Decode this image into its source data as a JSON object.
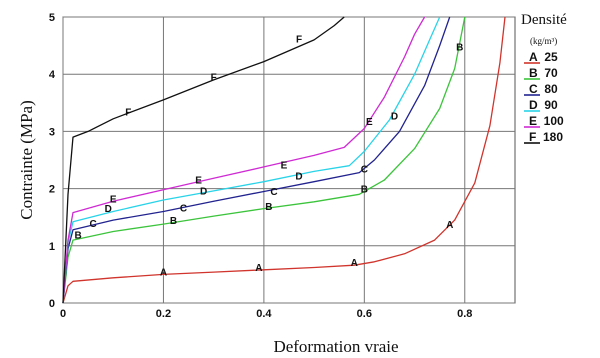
{
  "chart_data": {
    "type": "line",
    "title": "",
    "xlabel": "Deformation vraie",
    "ylabel": "Contrainte (MPa)",
    "xlim": [
      0,
      0.9
    ],
    "ylim": [
      0,
      5
    ],
    "x_ticks": [
      "0",
      "0.2",
      "0.4",
      "0.6",
      "0.8"
    ],
    "y_ticks": [
      "0",
      "1",
      "2",
      "3",
      "4",
      "5"
    ],
    "grid": true,
    "legend": {
      "title": "Densité",
      "unit": "(kg/m³)",
      "placement": "right"
    },
    "series": [
      {
        "name": "A 25",
        "marker": "A",
        "color": "#d0342c",
        "points": [
          [
            0,
            0
          ],
          [
            0.01,
            0.3
          ],
          [
            0.02,
            0.38
          ],
          [
            0.1,
            0.44
          ],
          [
            0.2,
            0.5
          ],
          [
            0.3,
            0.54
          ],
          [
            0.4,
            0.58
          ],
          [
            0.5,
            0.62
          ],
          [
            0.58,
            0.66
          ],
          [
            0.62,
            0.72
          ],
          [
            0.68,
            0.86
          ],
          [
            0.74,
            1.1
          ],
          [
            0.78,
            1.45
          ],
          [
            0.82,
            2.1
          ],
          [
            0.85,
            3.1
          ],
          [
            0.87,
            4.2
          ],
          [
            0.88,
            5.0
          ]
        ],
        "labels": [
          [
            0.2,
            0.55
          ],
          [
            0.39,
            0.63
          ],
          [
            0.58,
            0.72
          ],
          [
            0.77,
            1.38
          ]
        ]
      },
      {
        "name": "B 70",
        "marker": "B",
        "color": "#3cc43c",
        "points": [
          [
            0,
            0
          ],
          [
            0.01,
            0.8
          ],
          [
            0.02,
            1.1
          ],
          [
            0.1,
            1.25
          ],
          [
            0.2,
            1.38
          ],
          [
            0.3,
            1.52
          ],
          [
            0.4,
            1.65
          ],
          [
            0.5,
            1.77
          ],
          [
            0.59,
            1.9
          ],
          [
            0.64,
            2.15
          ],
          [
            0.7,
            2.7
          ],
          [
            0.75,
            3.4
          ],
          [
            0.78,
            4.1
          ],
          [
            0.8,
            5.0
          ]
        ],
        "labels": [
          [
            0.03,
            1.2
          ],
          [
            0.22,
            1.45
          ],
          [
            0.41,
            1.7
          ],
          [
            0.6,
            2.0
          ],
          [
            0.79,
            4.48
          ]
        ]
      },
      {
        "name": "C 80",
        "marker": "C",
        "color": "#22238f",
        "points": [
          [
            0,
            0
          ],
          [
            0.01,
            0.95
          ],
          [
            0.02,
            1.28
          ],
          [
            0.1,
            1.45
          ],
          [
            0.2,
            1.6
          ],
          [
            0.3,
            1.78
          ],
          [
            0.4,
            1.95
          ],
          [
            0.5,
            2.12
          ],
          [
            0.59,
            2.28
          ],
          [
            0.62,
            2.5
          ],
          [
            0.67,
            3.0
          ],
          [
            0.72,
            3.8
          ],
          [
            0.75,
            4.5
          ],
          [
            0.77,
            5.0
          ]
        ],
        "labels": [
          [
            0.06,
            1.4
          ],
          [
            0.24,
            1.67
          ],
          [
            0.42,
            1.96
          ],
          [
            0.6,
            2.35
          ]
        ]
      },
      {
        "name": "D 90",
        "marker": "D",
        "color": "#29d3e8",
        "points": [
          [
            0,
            0
          ],
          [
            0.01,
            1.05
          ],
          [
            0.02,
            1.42
          ],
          [
            0.1,
            1.6
          ],
          [
            0.2,
            1.8
          ],
          [
            0.3,
            1.96
          ],
          [
            0.4,
            2.12
          ],
          [
            0.5,
            2.3
          ],
          [
            0.57,
            2.4
          ],
          [
            0.6,
            2.65
          ],
          [
            0.65,
            3.2
          ],
          [
            0.7,
            4.0
          ],
          [
            0.73,
            4.6
          ],
          [
            0.75,
            5.0
          ]
        ],
        "labels": [
          [
            0.09,
            1.66
          ],
          [
            0.28,
            1.97
          ],
          [
            0.47,
            2.23
          ],
          [
            0.66,
            3.28
          ]
        ]
      },
      {
        "name": "E 100",
        "marker": "E",
        "color": "#cf2bd3",
        "points": [
          [
            0,
            0
          ],
          [
            0.01,
            1.1
          ],
          [
            0.02,
            1.58
          ],
          [
            0.1,
            1.78
          ],
          [
            0.2,
            1.98
          ],
          [
            0.3,
            2.18
          ],
          [
            0.4,
            2.38
          ],
          [
            0.5,
            2.58
          ],
          [
            0.56,
            2.72
          ],
          [
            0.6,
            3.05
          ],
          [
            0.64,
            3.6
          ],
          [
            0.68,
            4.3
          ],
          [
            0.7,
            4.7
          ],
          [
            0.72,
            5.0
          ]
        ],
        "labels": [
          [
            0.1,
            1.83
          ],
          [
            0.27,
            2.16
          ],
          [
            0.44,
            2.42
          ],
          [
            0.61,
            3.18
          ]
        ]
      },
      {
        "name": "F 180",
        "marker": "F",
        "color": "#111111",
        "points": [
          [
            0,
            0
          ],
          [
            0.01,
            1.9
          ],
          [
            0.02,
            2.9
          ],
          [
            0.05,
            3.0
          ],
          [
            0.1,
            3.22
          ],
          [
            0.2,
            3.55
          ],
          [
            0.3,
            3.9
          ],
          [
            0.4,
            4.22
          ],
          [
            0.5,
            4.6
          ],
          [
            0.54,
            4.85
          ],
          [
            0.56,
            5.0
          ]
        ],
        "labels": [
          [
            0.13,
            3.35
          ],
          [
            0.3,
            3.96
          ],
          [
            0.47,
            4.62
          ]
        ]
      }
    ]
  }
}
